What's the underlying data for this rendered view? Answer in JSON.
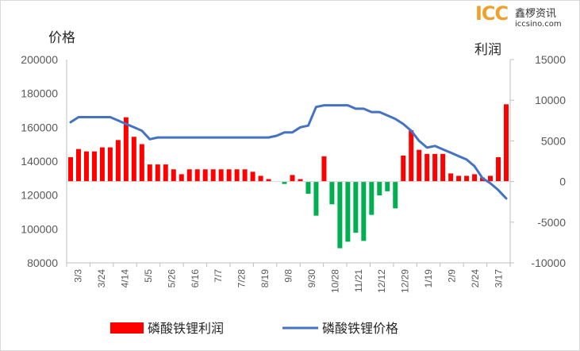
{
  "logo": {
    "mark": "ICC",
    "name": "鑫椤资讯",
    "url": "iccsino.com"
  },
  "chart_data": {
    "type": "bar+line",
    "left_axis_title": "价格",
    "right_axis_title": "利润",
    "left_ticks": [
      "200000",
      "180000",
      "160000",
      "140000",
      "120000",
      "100000",
      "80000"
    ],
    "right_ticks": [
      "15000",
      "10000",
      "5000",
      "0",
      "-5000",
      "-10000"
    ],
    "left_ylim": [
      80000,
      200000
    ],
    "right_ylim": [
      -10000,
      15000
    ],
    "x_tick_labels": [
      "3/3",
      "3/24",
      "4/14",
      "5/5",
      "5/26",
      "6/16",
      "7/7",
      "7/28",
      "8/19",
      "9/8",
      "9/30",
      "10/28",
      "11/21",
      "12/12",
      "12/29",
      "1/19",
      "2/9",
      "2/24",
      "3/17"
    ],
    "series": [
      {
        "name": "磷酸铁锂利润",
        "type": "bar",
        "color": "#ff0000",
        "negative_color": "#00b050",
        "values": [
          3000,
          4000,
          3700,
          3700,
          4200,
          4200,
          5100,
          7900,
          5500,
          4600,
          2100,
          2100,
          2100,
          1500,
          900,
          1500,
          1500,
          1500,
          1500,
          1500,
          1500,
          1500,
          1500,
          1200,
          700,
          300,
          0,
          -300,
          800,
          300,
          -1500,
          -4200,
          3100,
          -2800,
          -8200,
          -7400,
          -6300,
          -7300,
          -4100,
          -1700,
          -1200,
          -3300,
          3200,
          6300,
          3900,
          3400,
          3400,
          3400,
          1000,
          700,
          700,
          900,
          500,
          700,
          3000,
          9500
        ]
      },
      {
        "name": "磷酸铁锂价格",
        "type": "line",
        "color": "#4472c4",
        "values": [
          163000,
          166000,
          166000,
          166000,
          166000,
          166000,
          164000,
          162000,
          160000,
          158000,
          153000,
          154000,
          154000,
          154000,
          154000,
          154000,
          154000,
          154000,
          154000,
          154000,
          154000,
          154000,
          154000,
          154000,
          154000,
          154000,
          155000,
          157000,
          157000,
          160000,
          161000,
          172000,
          173000,
          173000,
          173000,
          173000,
          171000,
          171000,
          169000,
          169000,
          167000,
          165000,
          162000,
          158000,
          152000,
          148000,
          149000,
          147000,
          145000,
          143000,
          141000,
          137000,
          130000,
          127000,
          123000,
          118000
        ]
      }
    ]
  }
}
